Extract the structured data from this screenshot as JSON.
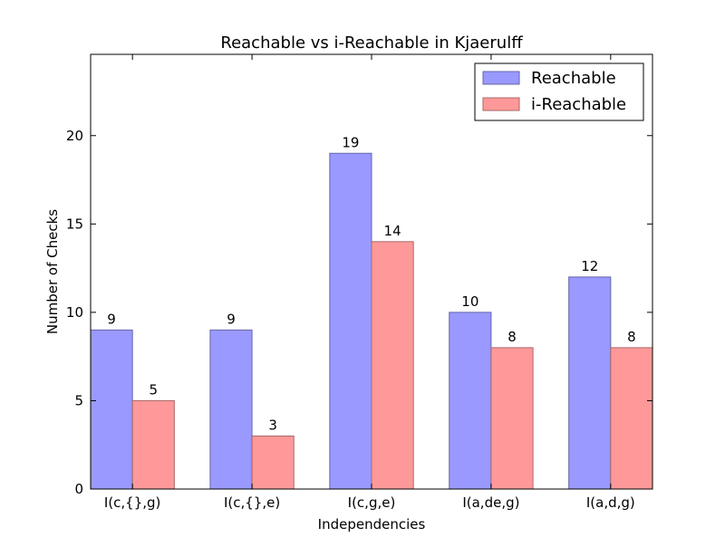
{
  "chart_data": {
    "type": "bar",
    "title": "Reachable vs i-Reachable in Kjaerulff",
    "xlabel": "Independencies",
    "ylabel": "Number of Checks",
    "categories": [
      "I(c,{},g)",
      "I(c,{},e)",
      "I(c,g,e)",
      "I(a,de,g)",
      "I(a,d,g)"
    ],
    "series": [
      {
        "name": "Reachable",
        "values": [
          9,
          9,
          19,
          10,
          12
        ],
        "color": "#9999ff",
        "edge": "#6666aa"
      },
      {
        "name": "i-Reachable",
        "values": [
          5,
          3,
          14,
          8,
          8
        ],
        "color": "#ff9999",
        "edge": "#aa6666"
      }
    ],
    "ylim": [
      0,
      24.6
    ],
    "yticks": [
      0,
      5,
      10,
      15,
      20
    ],
    "data_labels": true,
    "legend": "top-right",
    "grid": false
  }
}
